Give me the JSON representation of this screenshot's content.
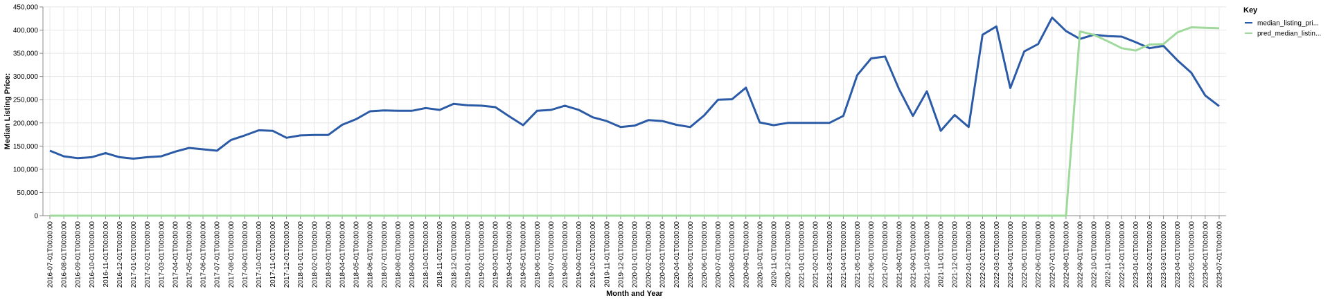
{
  "chart_data": {
    "type": "line",
    "xlabel": "Month and Year",
    "ylabel": "Median Listing Price:",
    "ylim": [
      0,
      450000
    ],
    "yticks": [
      "0",
      "50,000",
      "100,000",
      "150,000",
      "200,000",
      "250,000",
      "300,000",
      "350,000",
      "400,000",
      "450,000"
    ],
    "grid": true,
    "legend": {
      "title": "Key",
      "position": "top-right"
    },
    "x": [
      "2016-07-01T00:00:00",
      "2016-08-01T00:00:00",
      "2016-09-01T00:00:00",
      "2016-10-01T00:00:00",
      "2016-11-01T00:00:00",
      "2016-12-01T00:00:00",
      "2017-01-01T00:00:00",
      "2017-02-01T00:00:00",
      "2017-03-01T00:00:00",
      "2017-04-01T00:00:00",
      "2017-05-01T00:00:00",
      "2017-06-01T00:00:00",
      "2017-07-01T00:00:00",
      "2017-08-01T00:00:00",
      "2017-09-01T00:00:00",
      "2017-10-01T00:00:00",
      "2017-11-01T00:00:00",
      "2017-12-01T00:00:00",
      "2018-01-01T00:00:00",
      "2018-02-01T00:00:00",
      "2018-03-01T00:00:00",
      "2018-04-01T00:00:00",
      "2018-05-01T00:00:00",
      "2018-06-01T00:00:00",
      "2018-07-01T00:00:00",
      "2018-08-01T00:00:00",
      "2018-09-01T00:00:00",
      "2018-10-01T00:00:00",
      "2018-11-01T00:00:00",
      "2018-12-01T00:00:00",
      "2019-01-01T00:00:00",
      "2019-02-01T00:00:00",
      "2019-03-01T00:00:00",
      "2019-04-01T00:00:00",
      "2019-05-01T00:00:00",
      "2019-06-01T00:00:00",
      "2019-07-01T00:00:00",
      "2019-08-01T00:00:00",
      "2019-09-01T00:00:00",
      "2019-10-01T00:00:00",
      "2019-11-01T00:00:00",
      "2019-12-01T00:00:00",
      "2020-01-01T00:00:00",
      "2020-02-01T00:00:00",
      "2020-03-01T00:00:00",
      "2020-04-01T00:00:00",
      "2020-05-01T00:00:00",
      "2020-06-01T00:00:00",
      "2020-07-01T00:00:00",
      "2020-08-01T00:00:00",
      "2020-09-01T00:00:00",
      "2020-10-01T00:00:00",
      "2020-11-01T00:00:00",
      "2020-12-01T00:00:00",
      "2021-01-01T00:00:00",
      "2021-02-01T00:00:00",
      "2021-03-01T00:00:00",
      "2021-04-01T00:00:00",
      "2021-05-01T00:00:00",
      "2021-06-01T00:00:00",
      "2021-07-01T00:00:00",
      "2021-08-01T00:00:00",
      "2021-09-01T00:00:00",
      "2021-10-01T00:00:00",
      "2021-11-01T00:00:00",
      "2021-12-01T00:00:00",
      "2022-01-01T00:00:00",
      "2022-02-01T00:00:00",
      "2022-03-01T00:00:00",
      "2022-04-01T00:00:00",
      "2022-05-01T00:00:00",
      "2022-06-01T00:00:00",
      "2022-07-01T00:00:00",
      "2022-08-01T00:00:00",
      "2022-09-01T00:00:00",
      "2022-10-01T00:00:00",
      "2022-11-01T00:00:00",
      "2022-12-01T00:00:00",
      "2023-01-01T00:00:00",
      "2023-02-01T00:00:00",
      "2023-03-01T00:00:00",
      "2023-04-01T00:00:00",
      "2023-05-01T00:00:00",
      "2023-06-01T00:00:00",
      "2023-07-01T00:00:00"
    ],
    "series": [
      {
        "name": "median_listing_pri...",
        "color": "#2b5aa6",
        "values": [
          140000,
          128000,
          124000,
          126000,
          135000,
          126000,
          123000,
          126000,
          128000,
          138000,
          146000,
          143000,
          140000,
          163000,
          173000,
          184000,
          183000,
          168000,
          173000,
          174000,
          174000,
          196000,
          208000,
          225000,
          227000,
          226000,
          226000,
          232000,
          228000,
          241000,
          238000,
          237000,
          234000,
          214000,
          195000,
          226000,
          228000,
          237000,
          228000,
          212000,
          204000,
          191000,
          194000,
          206000,
          204000,
          196000,
          191000,
          216000,
          250000,
          251000,
          276000,
          201000,
          195000,
          200000,
          200000,
          200000,
          200000,
          215000,
          303000,
          339000,
          343000,
          273000,
          215000,
          268000,
          183000,
          217000,
          191000,
          390000,
          408000,
          275000,
          354000,
          370000,
          427000,
          398000,
          381000,
          390000,
          387000,
          386000,
          374000,
          361000,
          366000,
          335000,
          308000,
          259000,
          236000
        ]
      },
      {
        "name": "pred_median_listin...",
        "color": "#9fd99b",
        "values": [
          0,
          0,
          0,
          0,
          0,
          0,
          0,
          0,
          0,
          0,
          0,
          0,
          0,
          0,
          0,
          0,
          0,
          0,
          0,
          0,
          0,
          0,
          0,
          0,
          0,
          0,
          0,
          0,
          0,
          0,
          0,
          0,
          0,
          0,
          0,
          0,
          0,
          0,
          0,
          0,
          0,
          0,
          0,
          0,
          0,
          0,
          0,
          0,
          0,
          0,
          0,
          0,
          0,
          0,
          0,
          0,
          0,
          0,
          0,
          0,
          0,
          0,
          0,
          0,
          0,
          0,
          0,
          0,
          0,
          0,
          0,
          0,
          0,
          0,
          397000,
          390000,
          376000,
          361000,
          356000,
          369000,
          370000,
          395000,
          406000,
          405000,
          404000
        ]
      }
    ]
  }
}
